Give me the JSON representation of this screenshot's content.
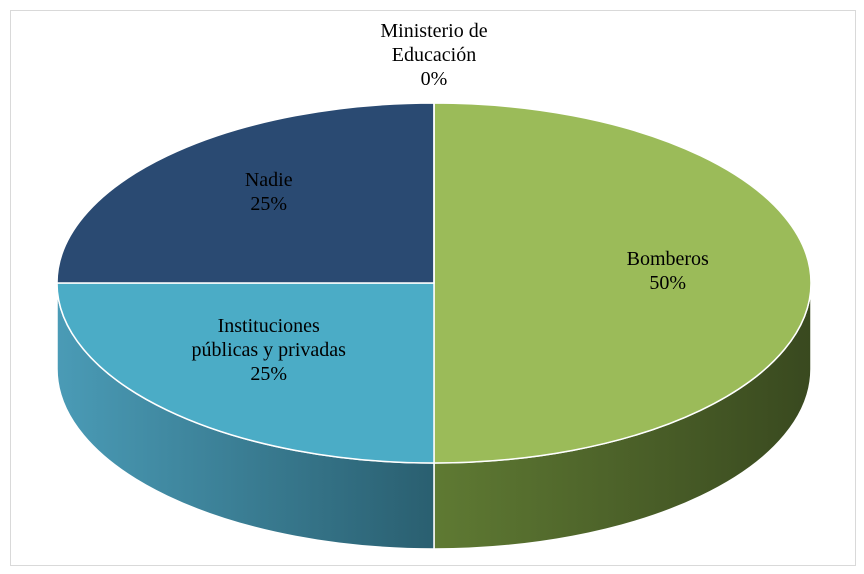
{
  "chart_data": {
    "type": "pie",
    "categories": [
      "Bomberos",
      "Instituciones públicas y privadas",
      "Nadie",
      "Ministerio de Educación"
    ],
    "values": [
      50,
      25,
      25,
      0
    ],
    "value_labels": [
      "50%",
      "25%",
      "25%",
      "0%"
    ],
    "colors": [
      "#9bbb59",
      "#4bacc6",
      "#2a4a72",
      "#8064a2"
    ]
  }
}
